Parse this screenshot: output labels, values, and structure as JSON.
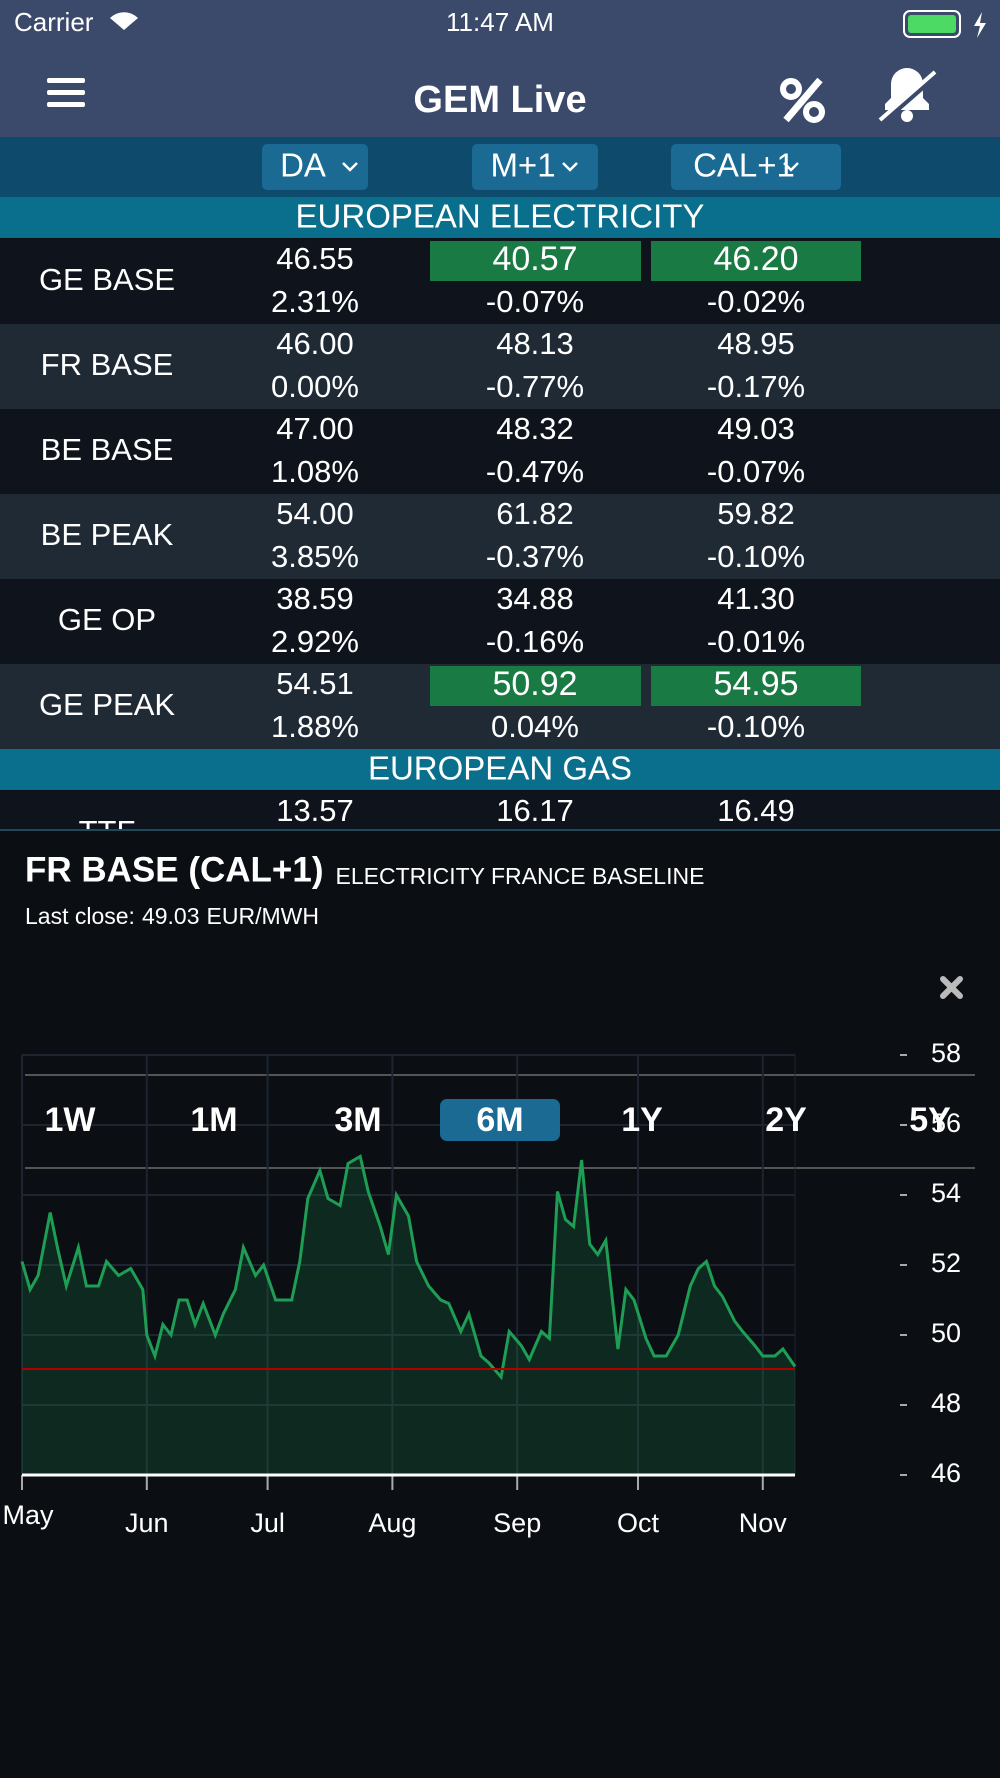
{
  "status_bar": {
    "carrier": "Carrier",
    "time": "11:47 AM"
  },
  "nav": {
    "title": "GEM Live"
  },
  "table": {
    "columns": [
      "DA",
      "M+1",
      "CAL+1"
    ],
    "sections": [
      {
        "title": "EUROPEAN ELECTRICITY",
        "rows": [
          {
            "name": "GE BASE",
            "cells": [
              {
                "price": "46.55",
                "change": "2.31%",
                "highlight": false
              },
              {
                "price": "40.57",
                "change": "-0.07%",
                "highlight": true
              },
              {
                "price": "46.20",
                "change": "-0.02%",
                "highlight": true
              }
            ]
          },
          {
            "name": "FR BASE",
            "cells": [
              {
                "price": "46.00",
                "change": "0.00%",
                "highlight": false
              },
              {
                "price": "48.13",
                "change": "-0.77%",
                "highlight": false
              },
              {
                "price": "48.95",
                "change": "-0.17%",
                "highlight": false
              }
            ]
          },
          {
            "name": "BE BASE",
            "cells": [
              {
                "price": "47.00",
                "change": "1.08%",
                "highlight": false
              },
              {
                "price": "48.32",
                "change": "-0.47%",
                "highlight": false
              },
              {
                "price": "49.03",
                "change": "-0.07%",
                "highlight": false
              }
            ]
          },
          {
            "name": "BE PEAK",
            "cells": [
              {
                "price": "54.00",
                "change": "3.85%",
                "highlight": false
              },
              {
                "price": "61.82",
                "change": "-0.37%",
                "highlight": false
              },
              {
                "price": "59.82",
                "change": "-0.10%",
                "highlight": false
              }
            ]
          },
          {
            "name": "GE OP",
            "cells": [
              {
                "price": "38.59",
                "change": "2.92%",
                "highlight": false
              },
              {
                "price": "34.88",
                "change": "-0.16%",
                "highlight": false
              },
              {
                "price": "41.30",
                "change": "-0.01%",
                "highlight": false
              }
            ]
          },
          {
            "name": "GE PEAK",
            "cells": [
              {
                "price": "54.51",
                "change": "1.88%",
                "highlight": false
              },
              {
                "price": "50.92",
                "change": "0.04%",
                "highlight": true
              },
              {
                "price": "54.95",
                "change": "-0.10%",
                "highlight": true
              }
            ]
          }
        ]
      },
      {
        "title": "EUROPEAN GAS",
        "rows": [
          {
            "name": "TTF",
            "cells": [
              {
                "price": "13.57"
              },
              {
                "price": "16.17"
              },
              {
                "price": "16.49"
              }
            ]
          }
        ]
      }
    ]
  },
  "popup": {
    "title": "FR BASE (CAL+1)",
    "subtitle": "ELECTRICITY FRANCE BASELINE",
    "last_close_label": "Last close:",
    "last_close": 49.03,
    "unit": "EUR/MWH",
    "ranges": [
      "1W",
      "1M",
      "3M",
      "6M",
      "1Y",
      "2Y",
      "5Y"
    ],
    "selected_range": "6M"
  },
  "chart_data": {
    "type": "line",
    "color": "#1e9e55",
    "reference_color": "#b00000",
    "grid": true,
    "x": [
      0,
      2,
      4,
      7,
      9,
      11,
      14,
      16,
      19,
      21,
      24,
      27,
      30,
      31,
      33,
      35,
      37,
      39,
      41,
      43,
      45,
      48,
      50,
      53,
      55,
      58,
      60,
      63,
      67,
      69,
      71,
      74,
      76,
      79,
      81,
      84,
      86,
      89,
      91,
      93,
      96,
      98,
      101,
      104,
      106,
      109,
      111,
      114,
      116,
      119,
      121,
      124,
      126,
      129,
      131,
      133,
      135,
      137,
      139,
      141,
      143,
      145,
      148,
      150,
      152,
      155,
      157,
      160,
      163,
      166,
      168,
      170,
      172,
      174,
      177,
      179,
      182,
      184,
      187,
      189,
      192
    ],
    "values": [
      52.1,
      51.3,
      51.7,
      53.5,
      52.4,
      51.4,
      52.5,
      51.4,
      51.4,
      52.1,
      51.7,
      51.9,
      51.3,
      50.0,
      49.4,
      50.3,
      50.0,
      51.0,
      51.0,
      50.3,
      50.9,
      50.0,
      50.6,
      51.3,
      52.5,
      51.7,
      52.0,
      51.0,
      51.0,
      52.1,
      53.9,
      54.7,
      53.9,
      53.7,
      54.9,
      55.1,
      54.1,
      53.1,
      52.3,
      54.0,
      53.4,
      52.1,
      51.4,
      51.0,
      50.9,
      50.1,
      50.6,
      49.4,
      49.2,
      48.8,
      50.1,
      49.7,
      49.3,
      50.1,
      49.9,
      54.1,
      53.3,
      53.1,
      55.0,
      52.6,
      52.3,
      52.7,
      49.6,
      51.3,
      51.0,
      49.9,
      49.4,
      49.4,
      50.0,
      51.4,
      51.9,
      52.1,
      51.4,
      51.1,
      50.4,
      50.1,
      49.7,
      49.4,
      49.4,
      49.6,
      49.1
    ],
    "xlim": [
      0,
      192
    ],
    "xticks": [
      {
        "value": 0,
        "label": "May"
      },
      {
        "value": 31,
        "label": "Jun"
      },
      {
        "value": 61,
        "label": "Jul"
      },
      {
        "value": 92,
        "label": "Aug"
      },
      {
        "value": 123,
        "label": "Sep"
      },
      {
        "value": 153,
        "label": "Oct"
      },
      {
        "value": 184,
        "label": "Nov"
      }
    ],
    "ylim": [
      46,
      58
    ],
    "yticks": [
      46,
      48,
      50,
      52,
      54,
      56,
      58
    ]
  }
}
